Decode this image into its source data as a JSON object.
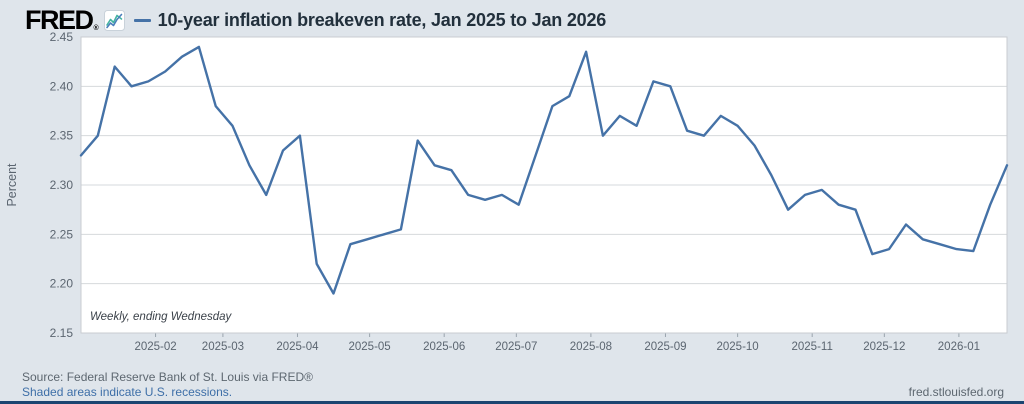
{
  "header": {
    "logo_text": "FRED",
    "registered_mark": "®",
    "chart_icon": "fred-sparkline-icon",
    "title": "10-year inflation breakeven rate, Jan 2025 to Jan 2026"
  },
  "chart_data": {
    "type": "line",
    "title": "10-year inflation breakeven rate, Jan 2025 to Jan 2026",
    "ylabel": "Percent",
    "xlabel": "",
    "ylim": [
      2.15,
      2.45
    ],
    "ytick_interval": 0.05,
    "ytick_labels": [
      "2.15",
      "2.20",
      "2.25",
      "2.30",
      "2.35",
      "2.40",
      "2.45"
    ],
    "xtick_labels": [
      "2025-02",
      "2025-03",
      "2025-04",
      "2025-05",
      "2025-06",
      "2025-07",
      "2025-08",
      "2025-09",
      "2025-10",
      "2025-11",
      "2025-12",
      "2026-01"
    ],
    "grid": true,
    "legend_position": "top-left-marker-only",
    "annotation": "Weekly, ending Wednesday",
    "line_color": "#4572a7",
    "series": [
      {
        "name": "10-year inflation breakeven rate",
        "units": "Percent",
        "frequency": "Weekly, ending Wednesday",
        "dates": [
          "2025-01-01",
          "2025-01-08",
          "2025-01-15",
          "2025-01-22",
          "2025-01-29",
          "2025-02-05",
          "2025-02-12",
          "2025-02-19",
          "2025-02-26",
          "2025-03-05",
          "2025-03-12",
          "2025-03-19",
          "2025-03-26",
          "2025-04-02",
          "2025-04-09",
          "2025-04-16",
          "2025-04-23",
          "2025-04-30",
          "2025-05-07",
          "2025-05-14",
          "2025-05-21",
          "2025-05-28",
          "2025-06-04",
          "2025-06-11",
          "2025-06-18",
          "2025-06-25",
          "2025-07-02",
          "2025-07-09",
          "2025-07-16",
          "2025-07-23",
          "2025-07-30",
          "2025-08-06",
          "2025-08-13",
          "2025-08-20",
          "2025-08-27",
          "2025-09-03",
          "2025-09-10",
          "2025-09-17",
          "2025-09-24",
          "2025-10-01",
          "2025-10-08",
          "2025-10-15",
          "2025-10-22",
          "2025-10-29",
          "2025-11-05",
          "2025-11-12",
          "2025-11-19",
          "2025-11-26",
          "2025-12-03",
          "2025-12-10",
          "2025-12-17",
          "2025-12-24",
          "2025-12-31",
          "2026-01-07",
          "2026-01-14",
          "2026-01-21"
        ],
        "values": [
          2.33,
          2.35,
          2.42,
          2.4,
          2.405,
          2.415,
          2.43,
          2.44,
          2.38,
          2.36,
          2.32,
          2.29,
          2.335,
          2.35,
          2.22,
          2.19,
          2.24,
          2.245,
          2.25,
          2.255,
          2.345,
          2.32,
          2.315,
          2.29,
          2.285,
          2.29,
          2.28,
          2.33,
          2.38,
          2.39,
          2.435,
          2.35,
          2.37,
          2.36,
          2.405,
          2.4,
          2.355,
          2.35,
          2.37,
          2.36,
          2.34,
          2.31,
          2.275,
          2.29,
          2.295,
          2.28,
          2.275,
          2.23,
          2.235,
          2.26,
          2.245,
          2.24,
          2.235,
          2.233,
          2.28,
          2.32
        ]
      }
    ]
  },
  "footer": {
    "source_text": "Source: Federal Reserve Bank of St. Louis via FRED®",
    "recession_note": "Shaded areas indicate U.S. recessions.",
    "site_url": "fred.stlouisfed.org"
  },
  "colors": {
    "background": "#dfe5eb",
    "plot_background": "#ffffff",
    "grid": "#d6d9dc",
    "plot_border": "#c8ccd1",
    "line": "#4572a7",
    "title": "#22303c",
    "tick_label": "#5b6570",
    "annotation": "#3a4149",
    "footer_text": "#5d6770",
    "link": "#3e6fa8",
    "bottom_bar": "#1b4571",
    "logo": "#000000"
  }
}
